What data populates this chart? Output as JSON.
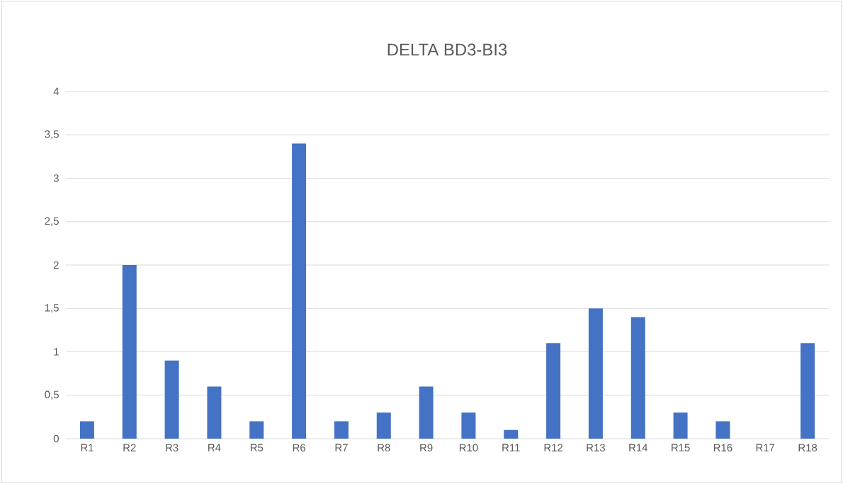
{
  "chart_data": {
    "type": "bar",
    "title": "DELTA BD3-BI3",
    "categories": [
      "R1",
      "R2",
      "R3",
      "R4",
      "R5",
      "R6",
      "R7",
      "R8",
      "R9",
      "R10",
      "R11",
      "R12",
      "R13",
      "R14",
      "R15",
      "R16",
      "R17",
      "R18"
    ],
    "values": [
      0.2,
      2,
      0.9,
      0.6,
      0.2,
      3.4,
      0.2,
      0.3,
      0.6,
      0.3,
      0.1,
      1.1,
      1.5,
      1.4,
      0.3,
      0.2,
      0,
      1.1
    ],
    "color": "#4472c4",
    "ylim": [
      0,
      4
    ],
    "yticks": [
      0,
      {
        "value": 0.5,
        "label": "0,5"
      },
      1,
      {
        "value": 1.5,
        "label": "1,5"
      },
      2,
      {
        "value": 2.5,
        "label": "2,5"
      },
      3,
      {
        "value": 3.5,
        "label": "3,5"
      },
      4
    ],
    "grid": "y"
  }
}
